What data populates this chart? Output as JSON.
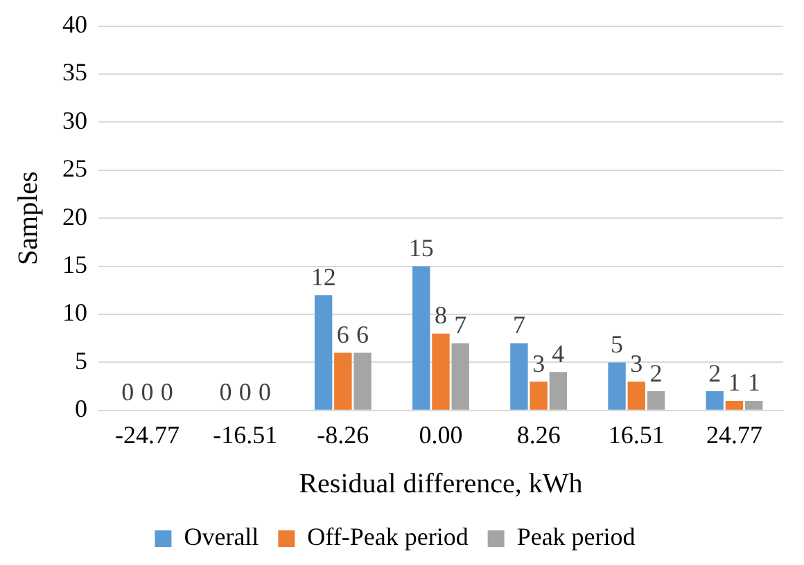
{
  "chart_data": {
    "type": "bar",
    "xlabel": "Residual difference, kWh",
    "ylabel": "Samples",
    "categories": [
      "-24.77",
      "-16.51",
      "-8.26",
      "0.00",
      "8.26",
      "16.51",
      "24.77"
    ],
    "series": [
      {
        "name": "Overall",
        "color": "#5b9bd5",
        "values": [
          0,
          0,
          12,
          15,
          7,
          5,
          2
        ]
      },
      {
        "name": "Off-Peak period",
        "color": "#ed7d31",
        "values": [
          0,
          0,
          6,
          8,
          3,
          3,
          1
        ]
      },
      {
        "name": "Peak period",
        "color": "#a5a5a5",
        "values": [
          0,
          0,
          6,
          7,
          4,
          2,
          1
        ]
      }
    ],
    "ylim": [
      0,
      40
    ],
    "yticks": [
      0,
      5,
      10,
      15,
      20,
      25,
      30,
      35,
      40
    ],
    "grid": "y",
    "legend": "bottom",
    "data_labels": true
  }
}
